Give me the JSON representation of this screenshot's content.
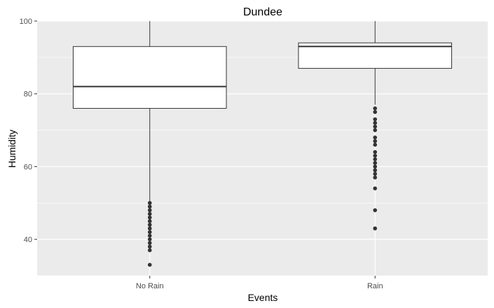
{
  "chart_data": {
    "type": "boxplot",
    "title": "Dundee",
    "xlabel": "Events",
    "ylabel": "Humidity",
    "ylim": [
      30,
      100
    ],
    "yticks": [
      40,
      60,
      80,
      100
    ],
    "grid": true,
    "colors": {
      "panel_bg": "#ebebeb",
      "grid_major": "#ffffff",
      "box_fill": "#ffffff",
      "box_stroke": "#333333",
      "outlier": "#333333"
    },
    "categories": [
      "No Rain",
      "Rain"
    ],
    "boxes": [
      {
        "category": "No Rain",
        "whisker_low": 50,
        "q1": 76,
        "median": 82,
        "q3": 93,
        "whisker_high": 100,
        "outliers": [
          33,
          37,
          38,
          39,
          40,
          41,
          42,
          43,
          44,
          45,
          46,
          47,
          48,
          49,
          50
        ]
      },
      {
        "category": "Rain",
        "whisker_low": 77,
        "q1": 87,
        "median": 93,
        "q3": 94,
        "whisker_high": 100,
        "outliers": [
          43,
          48,
          54,
          57,
          58,
          59,
          60,
          61,
          62,
          63,
          64,
          66,
          67,
          68,
          70,
          71,
          72,
          73,
          75,
          76
        ]
      }
    ]
  }
}
